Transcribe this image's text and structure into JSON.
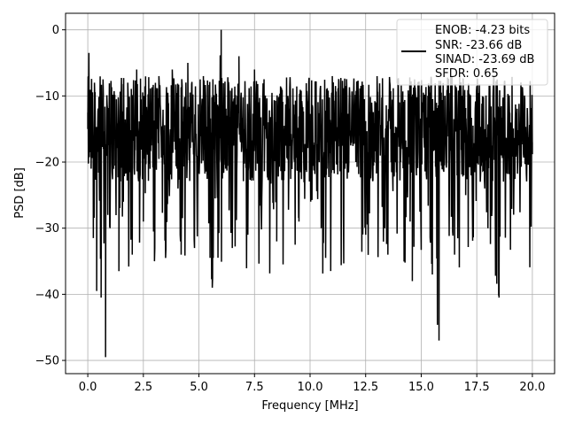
{
  "chart_data": {
    "type": "line",
    "title": "",
    "xlabel": "Frequency [MHz]",
    "ylabel": "PSD [dB]",
    "xlim": [
      -1.0,
      21.0
    ],
    "ylim": [
      -52.0,
      2.5
    ],
    "xticks": [
      0.0,
      2.5,
      5.0,
      7.5,
      10.0,
      12.5,
      15.0,
      17.5,
      20.0
    ],
    "xtick_labels": [
      "0.0",
      "2.5",
      "5.0",
      "7.5",
      "10.0",
      "12.5",
      "15.0",
      "17.5",
      "20.0"
    ],
    "yticks": [
      0,
      -10,
      -20,
      -30,
      -40,
      -50
    ],
    "ytick_labels": [
      "0",
      "−10",
      "−20",
      "−30",
      "−40",
      "−50"
    ],
    "grid": true,
    "legend_placement": "top-right",
    "legend_entries": [
      "ENOB: -4.23 bits",
      "SNR: -23.66 dB",
      "SINAD: -23.69 dB",
      "SFDR: 0.65"
    ],
    "series": [
      {
        "color": "#000000",
        "x": [
          0.0,
          0.05,
          0.1,
          0.15,
          0.2,
          0.25,
          0.3,
          0.4,
          0.5,
          0.6,
          0.7,
          0.8,
          0.9,
          1.0,
          1.2,
          1.4,
          1.6,
          1.8,
          2.0,
          2.2,
          2.5,
          2.8,
          3.0,
          3.2,
          3.5,
          3.8,
          4.0,
          4.2,
          4.5,
          4.8,
          5.0,
          5.2,
          5.5,
          5.6,
          5.8,
          6.0,
          6.2,
          6.5,
          6.8,
          7.0,
          7.2,
          7.5,
          7.8,
          8.0,
          8.5,
          9.0,
          9.5,
          10.0,
          10.5,
          10.7,
          11.0,
          11.5,
          12.0,
          12.5,
          13.0,
          13.5,
          14.0,
          14.5,
          14.6,
          15.0,
          15.5,
          15.8,
          16.0,
          16.5,
          16.8,
          17.0,
          17.5,
          18.0,
          18.5,
          18.6,
          19.0,
          19.5,
          20.0
        ],
        "y": [
          -15,
          -3.5,
          -14,
          -21,
          -10,
          -31.5,
          -8,
          -39.5,
          -20,
          -40.5,
          -18,
          -49.5,
          -28,
          -30,
          -12,
          -36.5,
          -26,
          -8,
          -34,
          -6,
          -29,
          -14,
          -35,
          -7,
          -34.5,
          -6,
          -20,
          -34,
          -5,
          -33,
          -19,
          -7,
          -34.5,
          -39,
          -18,
          0,
          -21,
          -33,
          -4,
          -15,
          -31,
          -6,
          -27,
          -15,
          -32,
          -10,
          -29,
          -16,
          -30,
          -34.5,
          -7,
          -28,
          -12,
          -31,
          -20,
          -34,
          -13,
          -29,
          -38,
          -9,
          -37,
          -47,
          -14,
          -34,
          -18,
          -25,
          -9,
          -30,
          -40.5,
          -19,
          -14,
          -20,
          -17
        ]
      }
    ]
  }
}
